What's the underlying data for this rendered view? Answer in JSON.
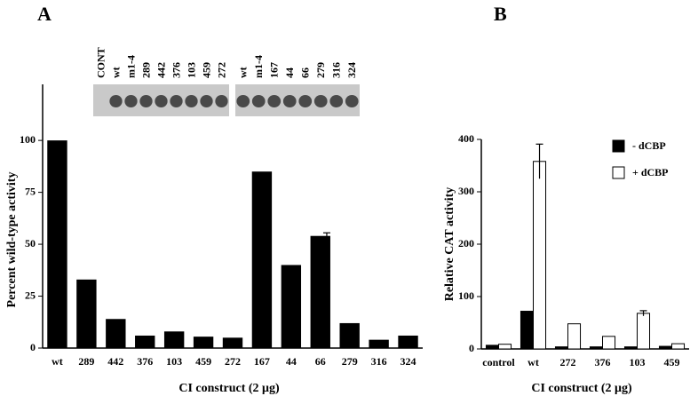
{
  "chart_data": [
    {
      "type": "bar",
      "panel": "A",
      "blot_lanes": [
        [
          "CONT",
          "wt",
          "m1-4",
          "289",
          "442",
          "376",
          "103",
          "459",
          "272"
        ],
        [
          "wt",
          "m1-4",
          "167",
          "44",
          "66",
          "279",
          "316",
          "324"
        ]
      ],
      "x_label": "CI construct (2 μg)",
      "y_label": "Percent wild-type activity",
      "categories": [
        "wt",
        "289",
        "442",
        "376",
        "103",
        "459",
        "272",
        "167",
        "44",
        "66",
        "279",
        "316",
        "324"
      ],
      "values": [
        100,
        33,
        14,
        6,
        8,
        5.5,
        5,
        85,
        40,
        54,
        12,
        4,
        6
      ],
      "errors": [
        null,
        null,
        null,
        null,
        null,
        null,
        null,
        null,
        null,
        1.5,
        null,
        null,
        null
      ],
      "color": "#000000",
      "ylim": [
        0,
        127
      ],
      "yticks": [
        0,
        25,
        50,
        75,
        100
      ]
    },
    {
      "type": "grouped-bar",
      "panel": "B",
      "x_label": "CI construct (2 μg)",
      "y_label": "Relative CAT activity",
      "categories": [
        "control",
        "wt",
        "272",
        "376",
        "103",
        "459"
      ],
      "series": [
        {
          "name": "- dCBP",
          "color": "#000000",
          "values": [
            7,
            72,
            4,
            4,
            4,
            5
          ],
          "errors": [
            null,
            null,
            null,
            null,
            null,
            null
          ]
        },
        {
          "name": "+ dCBP",
          "color": "#ffffff",
          "values": [
            9,
            358,
            48,
            24,
            68,
            10
          ],
          "errors": [
            null,
            33,
            null,
            null,
            5,
            null
          ]
        }
      ],
      "ylim": [
        0,
        400
      ],
      "yticks": [
        0,
        100,
        200,
        300,
        400
      ],
      "legend": "upper right"
    }
  ]
}
